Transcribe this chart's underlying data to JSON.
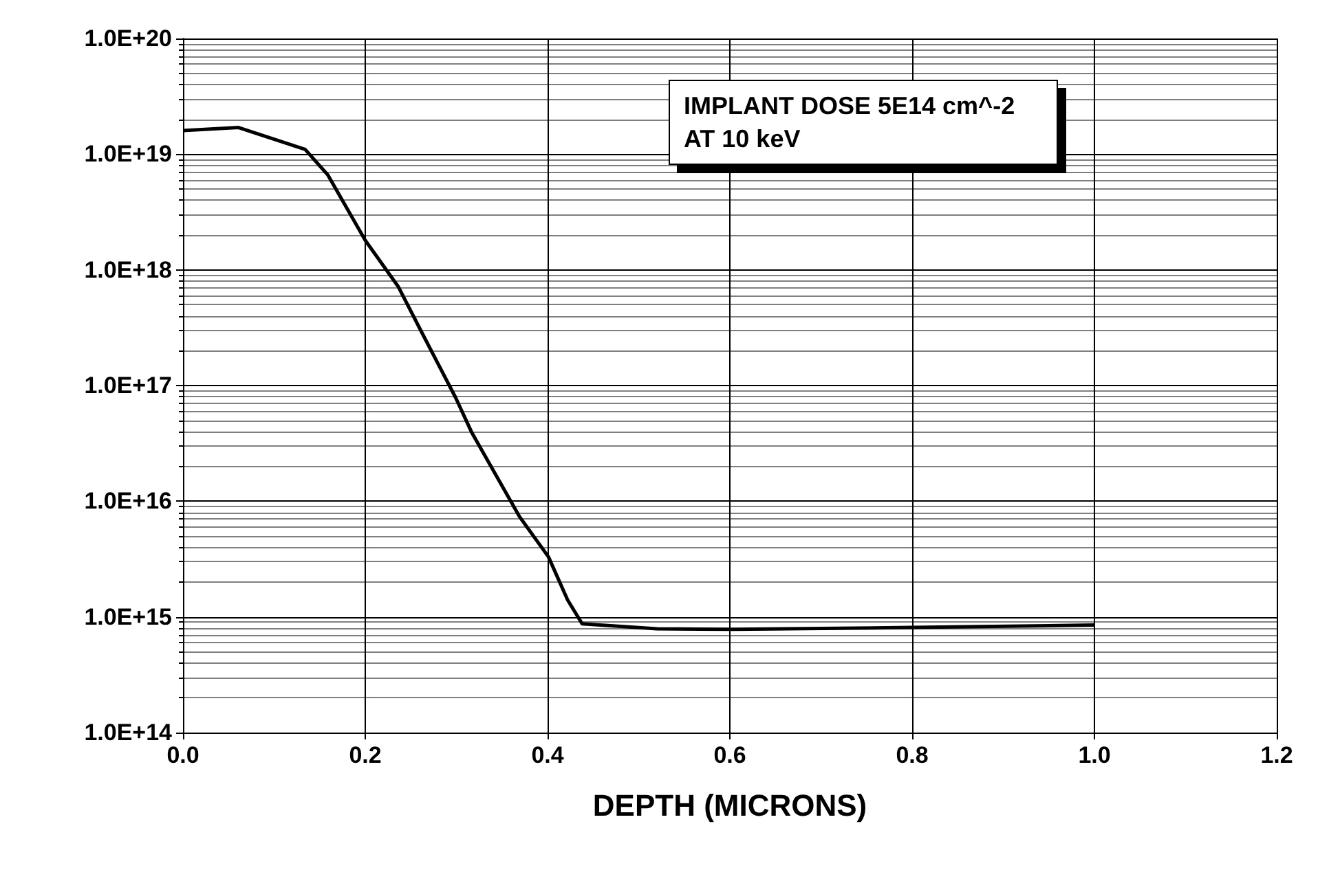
{
  "chart_data": {
    "type": "line",
    "xlabel": "DEPTH (MICRONS)",
    "annotations": [
      "IMPLANT DOSE 5E14 cm^-2\nAT 10 keV"
    ],
    "x": [
      0,
      0.061,
      0.134,
      0.159,
      0.2,
      0.236,
      0.266,
      0.299,
      0.317,
      0.369,
      0.401,
      0.422,
      0.438,
      0.52,
      0.604,
      0.8,
      1.0
    ],
    "series": [
      {
        "color": "#000000",
        "values": [
          1.6e+19,
          1.7e+19,
          1.1e+19,
          6.6e+18,
          1.8e+18,
          7.2e+17,
          2.5e+17,
          7.9e+16,
          3.9e+16,
          7400000000000000.0,
          3300000000000000.0,
          1400000000000000.0,
          870000000000000.0,
          790000000000000.0,
          780000000000000.0,
          810000000000000.0,
          850000000000000.0
        ]
      }
    ],
    "xlim": [
      0,
      1.2
    ],
    "xticks": [
      {
        "value": 0,
        "label": "0.0"
      },
      0.2,
      0.4,
      0.6,
      0.8,
      {
        "value": 1,
        "label": "1.0"
      },
      1.2
    ],
    "ylim": [
      100000000000000.0,
      1e+20
    ],
    "yticks": [
      {
        "value": 100000000000000.0,
        "label": "1.0E+14"
      },
      {
        "value": 1000000000000000.0,
        "label": "1.0E+15"
      },
      {
        "value": 1e+16,
        "label": "1.0E+16"
      },
      {
        "value": 1e+17,
        "label": "1.0E+17"
      },
      {
        "value": 1e+18,
        "label": "1.0E+18"
      },
      {
        "value": 1e+19,
        "label": "1.0E+19"
      },
      {
        "value": 1e+20,
        "label": "1.0E+20"
      }
    ],
    "log": "y",
    "grid": true,
    "marker": "none",
    "line_style": "solid"
  }
}
